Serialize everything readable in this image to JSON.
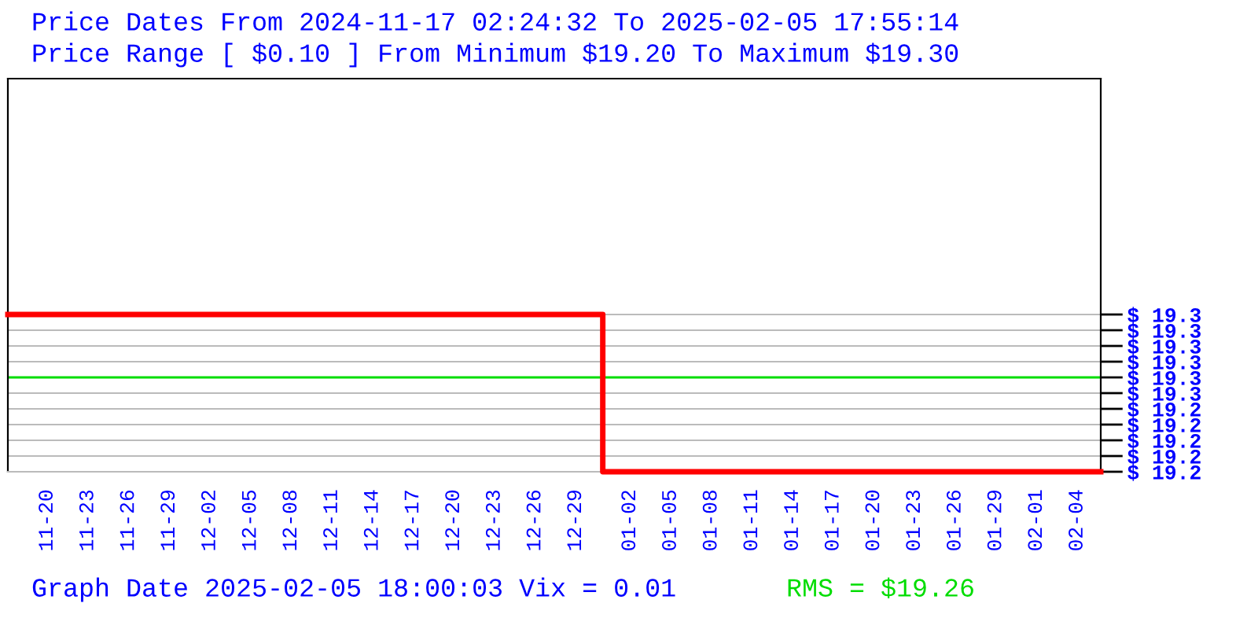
{
  "chart_data": {
    "type": "step",
    "title": "Price Dates From 2024-11-17 02:24:32 To 2025-02-05 17:55:14",
    "subtitle": "Price Range [ $0.10 ] From Minimum $19.20 To Maximum $19.30",
    "annotations": [
      "Graph Date 2025-02-05 18:00:03 Vix = 0.01"
    ],
    "x": [
      "2024-11-17T02:24",
      "2024-12-31T00:00",
      "2025-02-05T17:55"
    ],
    "series": [
      {
        "color": "#ff0000",
        "values": [
          19.3,
          19.2,
          19.2
        ]
      }
    ],
    "xlim": [
      "2024-11-17T02:24",
      "2025-02-05T17:55"
    ],
    "xticks": [
      {
        "value": "2024-11-20",
        "label": "11-20"
      },
      {
        "value": "2024-11-23",
        "label": "11-23"
      },
      {
        "value": "2024-11-26",
        "label": "11-26"
      },
      {
        "value": "2024-11-29",
        "label": "11-29"
      },
      {
        "value": "2024-12-02",
        "label": "12-02"
      },
      {
        "value": "2024-12-05",
        "label": "12-05"
      },
      {
        "value": "2024-12-08",
        "label": "12-08"
      },
      {
        "value": "2024-12-11",
        "label": "12-11"
      },
      {
        "value": "2024-12-14",
        "label": "12-14"
      },
      {
        "value": "2024-12-17",
        "label": "12-17"
      },
      {
        "value": "2024-12-20",
        "label": "12-20"
      },
      {
        "value": "2024-12-23",
        "label": "12-23"
      },
      {
        "value": "2024-12-26",
        "label": "12-26"
      },
      {
        "value": "2024-12-29",
        "label": "12-29"
      },
      {
        "value": "2025-01-02",
        "label": "01-02"
      },
      {
        "value": "2025-01-05",
        "label": "01-05"
      },
      {
        "value": "2025-01-08",
        "label": "01-08"
      },
      {
        "value": "2025-01-11",
        "label": "01-11"
      },
      {
        "value": "2025-01-14",
        "label": "01-14"
      },
      {
        "value": "2025-01-17",
        "label": "01-17"
      },
      {
        "value": "2025-01-20",
        "label": "01-20"
      },
      {
        "value": "2025-01-23",
        "label": "01-23"
      },
      {
        "value": "2025-01-26",
        "label": "01-26"
      },
      {
        "value": "2025-01-29",
        "label": "01-29"
      },
      {
        "value": "2025-02-01",
        "label": "02-01"
      },
      {
        "value": "2025-02-04",
        "label": "02-04"
      }
    ],
    "ylim": [
      19.2,
      19.45
    ],
    "yticks": [
      {
        "value": 19.3,
        "label": "$ 19.3"
      },
      {
        "value": 19.29,
        "label": "$ 19.3"
      },
      {
        "value": 19.28,
        "label": "$ 19.3"
      },
      {
        "value": 19.27,
        "label": "$ 19.3"
      },
      {
        "value": 19.26,
        "label": "$ 19.3"
      },
      {
        "value": 19.25,
        "label": "$ 19.3"
      },
      {
        "value": 19.24,
        "label": "$ 19.2"
      },
      {
        "value": 19.23,
        "label": "$ 19.2"
      },
      {
        "value": 19.22,
        "label": "$ 19.2"
      },
      {
        "value": 19.21,
        "label": "$ 19.2"
      },
      {
        "value": 19.2,
        "label": "$ 19.2"
      }
    ],
    "ref_lines": [
      {
        "axis": "y",
        "value": 19.26,
        "label": "RMS = $19.26",
        "color": "#00dd00"
      }
    ],
    "grid": "y",
    "legend": false,
    "marker": "none",
    "line_style": "solid"
  }
}
